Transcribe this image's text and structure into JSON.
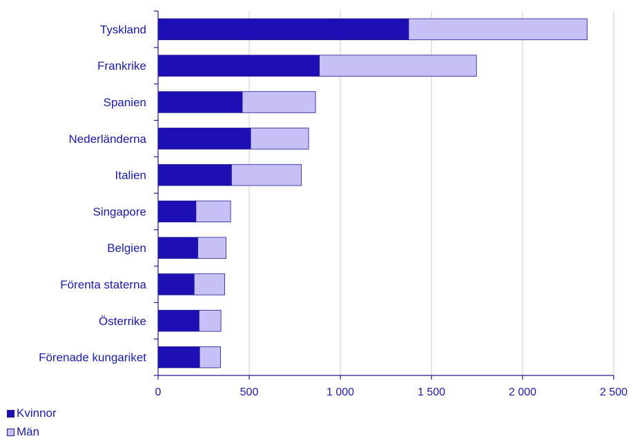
{
  "chart_data": {
    "type": "bar",
    "orientation": "horizontal",
    "stacked": true,
    "categories": [
      "Tyskland",
      "Frankrike",
      "Spanien",
      "Nederländerna",
      "Italien",
      "Singapore",
      "Belgien",
      "Förenta staterna",
      "Österrike",
      "Förenade kungariket"
    ],
    "series": [
      {
        "name": "Kvinnor",
        "color": "#1e0fb4",
        "values": [
          1375,
          885,
          462,
          508,
          403,
          208,
          218,
          198,
          225,
          228
        ]
      },
      {
        "name": "Män",
        "color": "#c6c0f7",
        "values": [
          980,
          862,
          402,
          318,
          383,
          190,
          155,
          168,
          120,
          115
        ]
      }
    ],
    "xlim": [
      0,
      2500
    ],
    "xticks": [
      0,
      500,
      1000,
      1500,
      2000,
      2500
    ],
    "xtick_labels": [
      "0",
      "500",
      "1 000",
      "1 500",
      "2 000",
      "2 500"
    ],
    "grid": true,
    "legend_position": "bottom-left"
  }
}
